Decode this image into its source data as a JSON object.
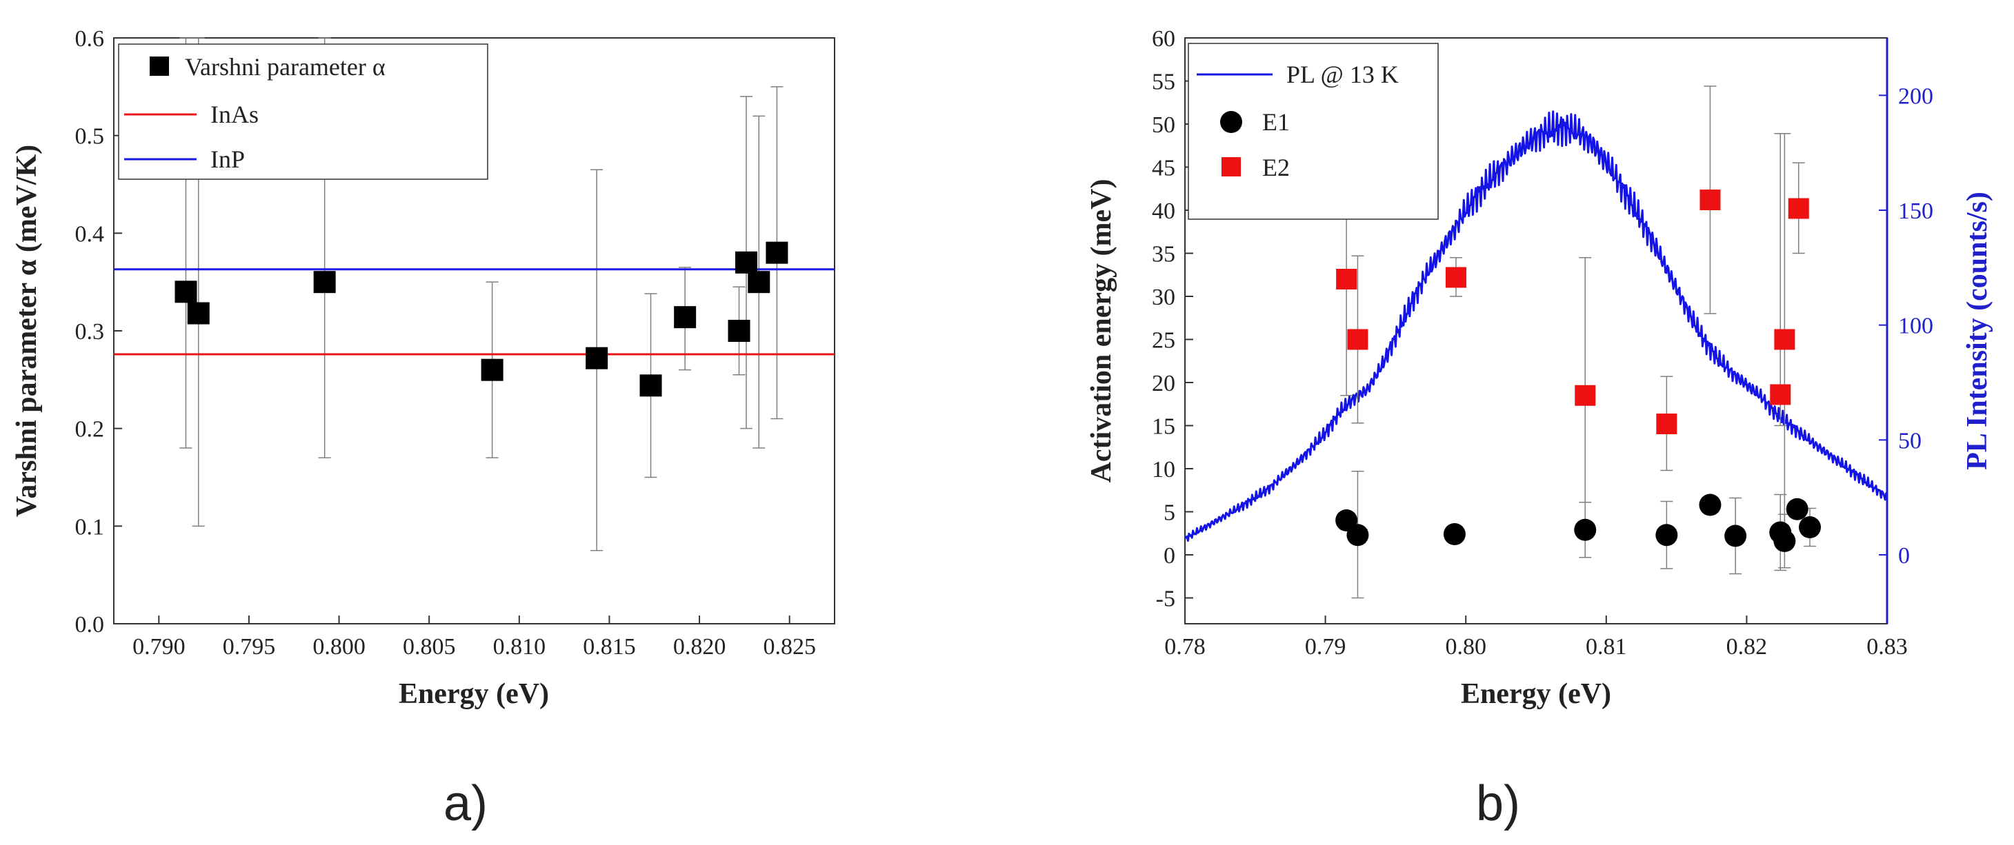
{
  "colors": {
    "inas_line": "#e8141b",
    "inp_line": "#1a1ae6",
    "marker_black": "#000000",
    "marker_red": "#ee1111",
    "pl_curve": "#1414e6",
    "errorbar": "#7f7f7f",
    "right_axis": "#1f1fcc"
  },
  "chart_data": [
    {
      "type": "scatter",
      "panel_label": "a)",
      "title": "",
      "xlabel": "Energy (eV)",
      "ylabel": "Varshni parameter α (meV/K)",
      "xlim": [
        0.7875,
        0.8275
      ],
      "ylim": [
        0.0,
        0.6
      ],
      "xticks": [
        0.79,
        0.795,
        0.8,
        0.805,
        0.81,
        0.815,
        0.82,
        0.825
      ],
      "xtick_labels": [
        "0.790",
        "0.795",
        "0.800",
        "0.805",
        "0.810",
        "0.815",
        "0.820",
        "0.825"
      ],
      "yticks": [
        0.0,
        0.1,
        0.2,
        0.3,
        0.4,
        0.5,
        0.6
      ],
      "ytick_labels": [
        "0.0",
        "0.1",
        "0.2",
        "0.3",
        "0.4",
        "0.5",
        "0.6"
      ],
      "legend": {
        "position": "top-left",
        "entries": [
          {
            "label": "Varshni parameter α",
            "marker": "square"
          },
          {
            "label": "InAs",
            "marker": "line"
          },
          {
            "label": "InP",
            "marker": "line"
          }
        ]
      },
      "series": [
        {
          "name": "Varshni parameter α",
          "marker": "square",
          "color": "#000000",
          "x": [
            0.7915,
            0.7922,
            0.7992,
            0.8085,
            0.8143,
            0.8173,
            0.8192,
            0.8222,
            0.8226,
            0.8233,
            0.8243
          ],
          "y": [
            0.34,
            0.318,
            0.35,
            0.26,
            0.272,
            0.244,
            0.314,
            0.3,
            0.37,
            0.35,
            0.38
          ],
          "ylow": [
            0.18,
            0.1,
            0.17,
            0.17,
            0.075,
            0.15,
            0.26,
            0.255,
            0.2,
            0.18,
            0.21
          ],
          "yhigh": [
            0.6,
            0.6,
            0.6,
            0.35,
            0.465,
            0.338,
            0.365,
            0.345,
            0.54,
            0.52,
            0.55
          ]
        },
        {
          "name": "InAs",
          "type": "hline",
          "y": 0.276,
          "color": "#e8141b"
        },
        {
          "name": "InP",
          "type": "hline",
          "y": 0.363,
          "color": "#1a1ae6"
        }
      ]
    },
    {
      "type": "scatter",
      "panel_label": "b)",
      "title": "",
      "xlabel": "Energy (eV)",
      "ylabel": "Activation energy (meV)",
      "y2label": "PL Intensity (counts/s)",
      "xlim": [
        0.78,
        0.83
      ],
      "ylim": [
        -8,
        60
      ],
      "y2lim": [
        -30,
        225
      ],
      "xticks": [
        0.78,
        0.79,
        0.8,
        0.81,
        0.82,
        0.83
      ],
      "xtick_labels": [
        "0.78",
        "0.79",
        "0.80",
        "0.81",
        "0.82",
        "0.83"
      ],
      "yticks": [
        -5,
        0,
        5,
        10,
        15,
        20,
        25,
        30,
        35,
        40,
        45,
        50,
        55,
        60
      ],
      "ytick_labels": [
        "-5",
        "0",
        "5",
        "10",
        "15",
        "20",
        "25",
        "30",
        "35",
        "40",
        "45",
        "50",
        "55",
        "60"
      ],
      "y2ticks": [
        0,
        50,
        100,
        150,
        200
      ],
      "y2tick_labels": [
        "0",
        "50",
        "100",
        "150",
        "200"
      ],
      "legend": {
        "position": "top-left",
        "entries": [
          {
            "label": "PL @ 13 K",
            "marker": "line"
          },
          {
            "label": "E1",
            "marker": "circle"
          },
          {
            "label": "E2",
            "marker": "square"
          }
        ]
      },
      "series": [
        {
          "name": "PL @ 13 K",
          "type": "line",
          "axis": "right",
          "color": "#1414e6",
          "x": [
            0.78,
            0.782,
            0.784,
            0.786,
            0.788,
            0.79,
            0.791,
            0.792,
            0.793,
            0.794,
            0.795,
            0.796,
            0.797,
            0.798,
            0.799,
            0.8,
            0.801,
            0.802,
            0.803,
            0.804,
            0.805,
            0.806,
            0.807,
            0.808,
            0.809,
            0.81,
            0.811,
            0.812,
            0.813,
            0.814,
            0.815,
            0.816,
            0.817,
            0.818,
            0.819,
            0.82,
            0.821,
            0.822,
            0.824,
            0.826,
            0.828,
            0.83
          ],
          "y": [
            7,
            14,
            21,
            29,
            40,
            53,
            62,
            68,
            72,
            82,
            95,
            108,
            120,
            130,
            140,
            150,
            158,
            165,
            171,
            177,
            182,
            185,
            186,
            184,
            179,
            171,
            161,
            151,
            140,
            128,
            116,
            104,
            93,
            85,
            79,
            74,
            69,
            62,
            52,
            43,
            34,
            25
          ]
        },
        {
          "name": "E1",
          "marker": "circle",
          "color": "#000000",
          "x": [
            0.7915,
            0.7923,
            0.7992,
            0.8085,
            0.8143,
            0.8174,
            0.8192,
            0.8224,
            0.8227,
            0.8236,
            0.8245
          ],
          "y": [
            4.0,
            2.3,
            2.4,
            2.9,
            2.3,
            5.8,
            2.2,
            2.6,
            1.6,
            5.3,
            3.2
          ],
          "ylow": [
            3.0,
            -5.0,
            1.8,
            -0.3,
            -1.6,
            5.0,
            -2.2,
            -1.8,
            -1.5,
            4.5,
            1.0
          ],
          "yhigh": [
            5.0,
            9.7,
            3.0,
            6.1,
            6.2,
            6.6,
            6.6,
            7.0,
            4.7,
            6.1,
            5.4
          ]
        },
        {
          "name": "E2",
          "marker": "square",
          "color": "#ee1111",
          "x": [
            0.7915,
            0.7923,
            0.7993,
            0.8085,
            0.8143,
            0.8174,
            0.8224,
            0.8227,
            0.8237
          ],
          "y": [
            32.0,
            25.0,
            32.2,
            18.5,
            15.2,
            41.2,
            18.6,
            25.0,
            40.2
          ],
          "ylow": [
            18.5,
            15.3,
            30.0,
            2.5,
            9.8,
            28.0,
            15.0,
            1.2,
            35.0
          ],
          "yhigh": [
            45.5,
            34.7,
            34.5,
            34.5,
            20.7,
            54.4,
            48.9,
            48.9,
            45.5
          ]
        }
      ]
    }
  ]
}
